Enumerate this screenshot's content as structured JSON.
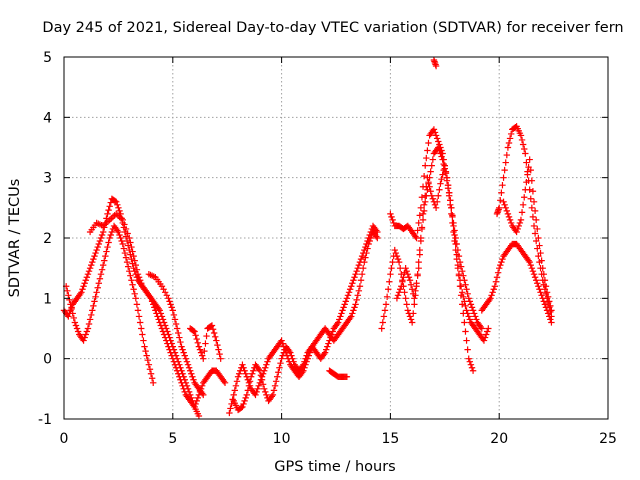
{
  "chart_data": {
    "type": "scatter",
    "title": "Day 245 of 2021, Sidereal Day-to-day VTEC variation (SDTVAR) for receiver fern",
    "xlabel": "GPS time / hours",
    "ylabel": "SDTVAR / TECUs",
    "xlim": [
      0,
      25
    ],
    "ylim": [
      -1,
      5
    ],
    "xticks": [
      "0",
      "5",
      "10",
      "15",
      "20",
      "25"
    ],
    "yticks": [
      "-1",
      "0",
      "1",
      "2",
      "3",
      "4",
      "5"
    ],
    "grid": true,
    "marker": "+",
    "color": "#ff0000",
    "series": [
      {
        "name": "trace-1",
        "x": [
          0.0,
          0.2,
          0.4,
          0.6,
          0.8,
          1.0,
          1.2,
          1.4,
          1.6,
          1.8,
          2.0,
          2.2,
          2.4,
          2.6,
          2.8,
          3.0,
          3.2,
          3.4,
          3.6,
          3.8,
          4.0,
          4.2,
          4.4,
          4.6,
          4.8,
          5.0,
          5.2,
          5.4,
          5.6,
          5.8,
          6.0,
          6.2,
          6.4,
          6.6,
          6.8,
          7.0,
          7.2,
          7.4
        ],
        "y": [
          0.8,
          0.7,
          0.9,
          1.0,
          1.1,
          1.3,
          1.5,
          1.7,
          1.9,
          2.1,
          2.4,
          2.65,
          2.6,
          2.4,
          2.1,
          1.8,
          1.5,
          1.3,
          1.2,
          1.1,
          1.0,
          0.8,
          0.6,
          0.4,
          0.2,
          0.0,
          -0.2,
          -0.4,
          -0.6,
          -0.7,
          -0.8,
          -0.6,
          -0.4,
          -0.3,
          -0.2,
          -0.2,
          -0.3,
          -0.4
        ]
      },
      {
        "name": "trace-2",
        "x": [
          0.1,
          0.3,
          0.5,
          0.7,
          0.9,
          1.1,
          1.3,
          1.5,
          1.7,
          1.9,
          2.1,
          2.3,
          2.5,
          2.7,
          2.9,
          3.1,
          3.3,
          3.5,
          3.7,
          3.9,
          4.1
        ],
        "y": [
          1.2,
          0.9,
          0.6,
          0.4,
          0.3,
          0.5,
          0.8,
          1.1,
          1.4,
          1.7,
          2.0,
          2.2,
          2.1,
          1.9,
          1.6,
          1.3,
          1.0,
          0.6,
          0.2,
          -0.1,
          -0.4
        ]
      },
      {
        "name": "trace-3",
        "x": [
          1.2,
          1.5,
          1.8,
          2.1,
          2.4,
          2.7,
          3.0,
          3.2,
          3.4,
          3.6,
          3.8,
          4.0,
          4.2,
          4.4,
          4.6,
          4.8,
          5.0,
          5.2,
          5.4,
          5.6,
          5.8,
          6.0,
          6.2
        ],
        "y": [
          2.1,
          2.25,
          2.2,
          2.3,
          2.4,
          2.3,
          2.0,
          1.7,
          1.4,
          1.2,
          1.1,
          1.0,
          0.9,
          0.8,
          0.6,
          0.4,
          0.2,
          0.0,
          -0.2,
          -0.4,
          -0.6,
          -0.8,
          -0.95
        ]
      },
      {
        "name": "trace-4",
        "x": [
          3.9,
          4.2,
          4.5,
          4.8,
          5.0,
          5.2,
          5.4,
          5.6,
          5.8,
          6.0,
          6.2,
          6.4
        ],
        "y": [
          1.4,
          1.35,
          1.2,
          1.0,
          0.8,
          0.5,
          0.2,
          0.0,
          -0.2,
          -0.4,
          -0.5,
          -0.6
        ]
      },
      {
        "name": "trace-5",
        "x": [
          5.8,
          6.0,
          6.2,
          6.4,
          6.6,
          6.8,
          7.0,
          7.2
        ],
        "y": [
          0.5,
          0.45,
          0.2,
          0.0,
          0.5,
          0.55,
          0.3,
          0.0
        ]
      },
      {
        "name": "trace-6",
        "x": [
          7.6,
          7.8,
          8.0,
          8.2,
          8.4,
          8.6,
          8.8,
          9.0,
          9.2,
          9.4,
          9.6,
          9.8,
          10.0,
          10.2,
          10.4,
          10.6,
          10.8,
          11.0,
          11.2,
          11.4,
          11.6,
          11.8,
          12.0,
          12.2,
          12.4,
          12.6,
          12.8,
          13.0,
          13.2,
          13.4,
          13.6,
          13.8,
          14.0,
          14.2,
          14.4
        ],
        "y": [
          -0.9,
          -0.6,
          -0.3,
          -0.1,
          -0.3,
          -0.5,
          -0.6,
          -0.4,
          -0.2,
          0.0,
          0.1,
          0.2,
          0.3,
          0.1,
          -0.1,
          -0.2,
          -0.3,
          -0.2,
          0.0,
          0.2,
          0.3,
          0.4,
          0.5,
          0.4,
          0.3,
          0.4,
          0.5,
          0.6,
          0.7,
          0.9,
          1.2,
          1.6,
          1.9,
          2.1,
          2.0
        ]
      },
      {
        "name": "trace-7",
        "x": [
          7.8,
          8.0,
          8.2,
          8.4,
          8.6,
          8.8,
          9.0,
          9.2,
          9.4,
          9.6,
          9.8,
          10.0,
          10.2,
          10.4,
          10.6,
          10.8,
          11.0,
          11.2,
          11.4,
          11.6,
          11.8,
          12.0,
          12.2,
          12.4,
          12.6,
          12.8,
          13.0,
          13.2,
          13.4,
          13.6,
          13.8,
          14.0,
          14.2,
          14.4
        ],
        "y": [
          -0.7,
          -0.85,
          -0.8,
          -0.6,
          -0.3,
          -0.1,
          -0.2,
          -0.5,
          -0.7,
          -0.6,
          -0.3,
          0.0,
          0.2,
          0.1,
          -0.1,
          -0.2,
          -0.1,
          0.1,
          0.2,
          0.1,
          0.0,
          0.1,
          0.3,
          0.5,
          0.6,
          0.8,
          1.0,
          1.2,
          1.4,
          1.6,
          1.8,
          2.0,
          2.2,
          2.1
        ]
      },
      {
        "name": "trace-8",
        "x": [
          12.2,
          12.4,
          12.6,
          12.8,
          13.0
        ],
        "y": [
          -0.2,
          -0.25,
          -0.3,
          -0.3,
          -0.3
        ]
      },
      {
        "name": "trace-9",
        "x": [
          14.6,
          14.8,
          15.0,
          15.2,
          15.4,
          15.6,
          15.8,
          16.0,
          16.2,
          16.4,
          16.6,
          16.8,
          17.0,
          17.2,
          17.4,
          17.6,
          17.8,
          18.0,
          18.2,
          18.4,
          18.6,
          18.8
        ],
        "y": [
          0.5,
          0.9,
          1.4,
          1.8,
          1.6,
          1.2,
          0.8,
          0.6,
          1.2,
          2.0,
          2.6,
          3.0,
          3.4,
          3.5,
          3.3,
          3.0,
          2.5,
          1.9,
          1.2,
          0.6,
          0.0,
          -0.2
        ]
      },
      {
        "name": "trace-10",
        "x": [
          15.0,
          15.2,
          15.4,
          15.6,
          15.8,
          16.0,
          16.2,
          16.4,
          16.6,
          16.8,
          17.0,
          17.2,
          17.4,
          17.6,
          17.8,
          18.0,
          18.2,
          18.4,
          18.6,
          18.8,
          19.0,
          19.2
        ],
        "y": [
          2.4,
          2.2,
          2.2,
          2.15,
          2.2,
          2.1,
          2.0,
          2.5,
          3.2,
          3.7,
          3.8,
          3.6,
          3.4,
          3.0,
          2.5,
          2.0,
          1.6,
          1.3,
          1.0,
          0.8,
          0.6,
          0.5
        ]
      },
      {
        "name": "trace-11",
        "x": [
          15.3,
          15.5,
          15.7,
          15.9,
          16.1,
          16.3,
          16.5,
          16.7,
          16.9,
          17.1,
          17.3,
          17.5,
          17.7,
          17.9,
          18.1,
          18.3,
          18.5,
          18.7,
          18.9,
          19.1,
          19.3,
          19.5
        ],
        "y": [
          1.0,
          1.2,
          1.5,
          1.3,
          1.0,
          1.5,
          2.4,
          3.0,
          2.7,
          2.5,
          2.9,
          3.2,
          2.7,
          2.1,
          1.5,
          1.1,
          0.8,
          0.6,
          0.5,
          0.4,
          0.3,
          0.5
        ]
      },
      {
        "name": "trace-12",
        "x": [
          17.0,
          17.1
        ],
        "y": [
          4.95,
          4.85
        ]
      },
      {
        "name": "trace-13",
        "x": [
          19.2,
          19.4,
          19.6,
          19.8,
          20.0,
          20.2,
          20.4,
          20.6,
          20.8,
          21.0,
          21.2,
          21.4,
          21.6,
          21.8,
          22.0,
          22.2,
          22.4
        ],
        "y": [
          0.8,
          0.9,
          1.0,
          1.2,
          1.5,
          1.7,
          1.8,
          1.9,
          1.9,
          1.8,
          1.7,
          1.6,
          1.4,
          1.2,
          1.0,
          0.8,
          0.6
        ]
      },
      {
        "name": "trace-14",
        "x": [
          19.9,
          20.0,
          20.2,
          20.4,
          20.6,
          20.8,
          21.0,
          21.2,
          21.4,
          21.6,
          21.8,
          22.0,
          22.2,
          22.4
        ],
        "y": [
          2.4,
          2.5,
          3.0,
          3.5,
          3.8,
          3.85,
          3.7,
          3.4,
          2.8,
          2.2,
          1.7,
          1.3,
          1.0,
          0.7
        ]
      },
      {
        "name": "trace-15",
        "x": [
          20.2,
          20.4,
          20.6,
          20.8,
          21.0,
          21.2,
          21.4,
          21.6,
          21.8,
          22.0,
          22.2,
          22.4
        ],
        "y": [
          2.6,
          2.4,
          2.2,
          2.1,
          2.3,
          2.8,
          3.3,
          2.6,
          2.0,
          1.5,
          1.1,
          0.8
        ]
      }
    ]
  }
}
